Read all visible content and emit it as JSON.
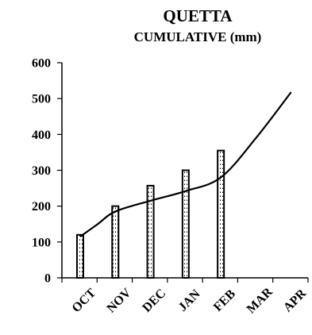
{
  "chart_data": {
    "type": "bar",
    "title": "QUETTA",
    "subtitle": "CUMULATIVE (mm)",
    "categories": [
      "OCT",
      "NOV",
      "DEC",
      "JAN",
      "FEB",
      "MAR",
      "APR"
    ],
    "series": [
      {
        "type": "bar",
        "values": [
          120,
          200,
          257,
          300,
          355,
          null,
          null
        ]
      },
      {
        "type": "line",
        "x": [
          0,
          0.5,
          1,
          2,
          3,
          4,
          5,
          6
        ],
        "values": [
          115,
          150,
          185,
          215,
          242,
          280,
          390,
          518
        ]
      }
    ],
    "ylim": [
      0,
      600
    ],
    "yticks": [
      0,
      100,
      200,
      300,
      400,
      500,
      600
    ],
    "grid": false,
    "legend": "none"
  }
}
